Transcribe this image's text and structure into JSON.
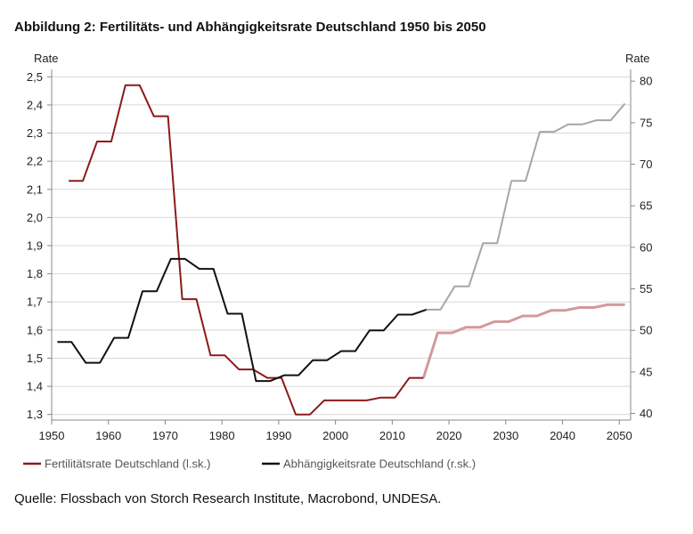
{
  "header": {
    "title": "Abbildung 2: Fertilitäts- und Abhängigkeitsrate Deutschland 1950 bis 2050"
  },
  "footer": {
    "source": "Quelle: Flossbach von Storch Research Institute, Macrobond, UNDESA."
  },
  "chart_data": {
    "type": "line",
    "xlim": [
      1950,
      2052
    ],
    "xticks": [
      "1950",
      "1960",
      "1970",
      "1980",
      "1990",
      "2000",
      "2010",
      "2020",
      "2030",
      "2040",
      "2050"
    ],
    "left_axis": {
      "label": "Rate",
      "ylim": [
        1.28,
        2.52
      ],
      "ticks": [
        "1,3",
        "1,4",
        "1,5",
        "1,6",
        "1,7",
        "1,8",
        "1,9",
        "2,0",
        "2,1",
        "2,2",
        "2,3",
        "2,4",
        "2,5"
      ]
    },
    "right_axis": {
      "label": "Rate",
      "ylim": [
        39.2,
        81.2
      ],
      "ticks": [
        "40",
        "45",
        "50",
        "55",
        "60",
        "65",
        "70",
        "75",
        "80"
      ]
    },
    "grid": "horizontal",
    "legend_position": "bottom",
    "series": [
      {
        "name": "Fertilitätsrate Deutschland (l.sk.)",
        "axis": "left",
        "color": "#8b1a1a",
        "forecast_color": "#d4999b",
        "forecast_from": 2017.5,
        "points": [
          [
            1953,
            2.13
          ],
          [
            1955.5,
            2.13
          ],
          [
            1958,
            2.27
          ],
          [
            1960.5,
            2.27
          ],
          [
            1963,
            2.47
          ],
          [
            1965.5,
            2.47
          ],
          [
            1968,
            2.36
          ],
          [
            1970.5,
            2.36
          ],
          [
            1973,
            1.71
          ],
          [
            1975.5,
            1.71
          ],
          [
            1978,
            1.51
          ],
          [
            1980.5,
            1.51
          ],
          [
            1983,
            1.46
          ],
          [
            1985.5,
            1.46
          ],
          [
            1988,
            1.43
          ],
          [
            1990.5,
            1.43
          ],
          [
            1993,
            1.3
          ],
          [
            1995.5,
            1.3
          ],
          [
            1998,
            1.35
          ],
          [
            2000.5,
            1.35
          ],
          [
            2003,
            1.35
          ],
          [
            2005.5,
            1.35
          ],
          [
            2008,
            1.36
          ],
          [
            2010.5,
            1.36
          ],
          [
            2013,
            1.43
          ],
          [
            2015.5,
            1.43
          ],
          [
            2018,
            1.59
          ],
          [
            2020.5,
            1.59
          ],
          [
            2023,
            1.61
          ],
          [
            2025.5,
            1.61
          ],
          [
            2028,
            1.63
          ],
          [
            2030.5,
            1.63
          ],
          [
            2033,
            1.65
          ],
          [
            2035.5,
            1.65
          ],
          [
            2038,
            1.67
          ],
          [
            2040.5,
            1.67
          ],
          [
            2043,
            1.68
          ],
          [
            2045.5,
            1.68
          ],
          [
            2048,
            1.69
          ],
          [
            2051,
            1.69
          ]
        ]
      },
      {
        "name": "Abhängigkeitsrate Deutschland (r.sk.)",
        "axis": "right",
        "color": "#111111",
        "forecast_color": "#a6a6a6",
        "forecast_from": 2016.5,
        "points": [
          [
            1951,
            48.6
          ],
          [
            1953.5,
            48.6
          ],
          [
            1956,
            46.1
          ],
          [
            1958.5,
            46.1
          ],
          [
            1961,
            49.1
          ],
          [
            1963.5,
            49.1
          ],
          [
            1966,
            54.7
          ],
          [
            1968.5,
            54.7
          ],
          [
            1971,
            58.6
          ],
          [
            1973.5,
            58.6
          ],
          [
            1976,
            57.4
          ],
          [
            1978.5,
            57.4
          ],
          [
            1981,
            52.0
          ],
          [
            1983.5,
            52.0
          ],
          [
            1986,
            43.9
          ],
          [
            1988.5,
            43.9
          ],
          [
            1991,
            44.6
          ],
          [
            1993.5,
            44.6
          ],
          [
            1996,
            46.4
          ],
          [
            1998.5,
            46.4
          ],
          [
            2001,
            47.5
          ],
          [
            2003.5,
            47.5
          ],
          [
            2006,
            50.0
          ],
          [
            2008.5,
            50.0
          ],
          [
            2011,
            51.9
          ],
          [
            2013.5,
            51.9
          ],
          [
            2016,
            52.5
          ],
          [
            2018.5,
            52.5
          ],
          [
            2021,
            55.3
          ],
          [
            2023.5,
            55.3
          ],
          [
            2026,
            60.5
          ],
          [
            2028.5,
            60.5
          ],
          [
            2031,
            68.0
          ],
          [
            2033.5,
            68.0
          ],
          [
            2036,
            73.9
          ],
          [
            2038.5,
            73.9
          ],
          [
            2041,
            74.8
          ],
          [
            2043.5,
            74.8
          ],
          [
            2046,
            75.3
          ],
          [
            2048.5,
            75.3
          ],
          [
            2051,
            77.3
          ]
        ]
      }
    ]
  }
}
